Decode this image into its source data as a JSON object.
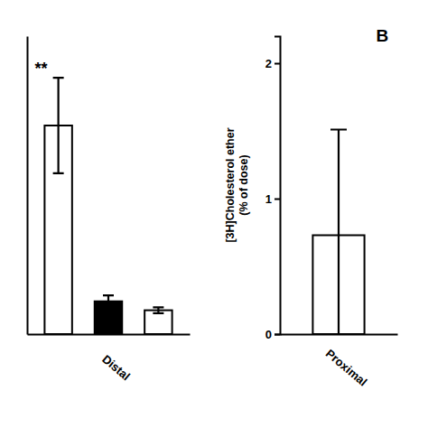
{
  "chart_data": [
    {
      "type": "bar",
      "categories": [
        null,
        null,
        null
      ],
      "values": [
        0.35,
        0.055,
        0.04
      ],
      "errors": [
        0.08,
        0.01,
        0.005
      ],
      "colors": [
        "white",
        "black",
        "white"
      ],
      "ylim": [
        0,
        0.5
      ],
      "yticks": [],
      "tick_labels": false,
      "x_label": "Distal",
      "annotation": "**"
    },
    {
      "type": "bar",
      "categories": [
        null
      ],
      "values": [
        0.73
      ],
      "error_up": [
        0.78
      ],
      "error_down": [
        0.73
      ],
      "colors": [
        "white"
      ],
      "ylim": [
        0,
        2.2
      ],
      "yticks": [
        0,
        1,
        2
      ],
      "tick_labels": "y",
      "x_label": "Proximal",
      "y_label": "[3H]Cholesterol ether\n(% of dose)",
      "annotation": "B"
    }
  ]
}
